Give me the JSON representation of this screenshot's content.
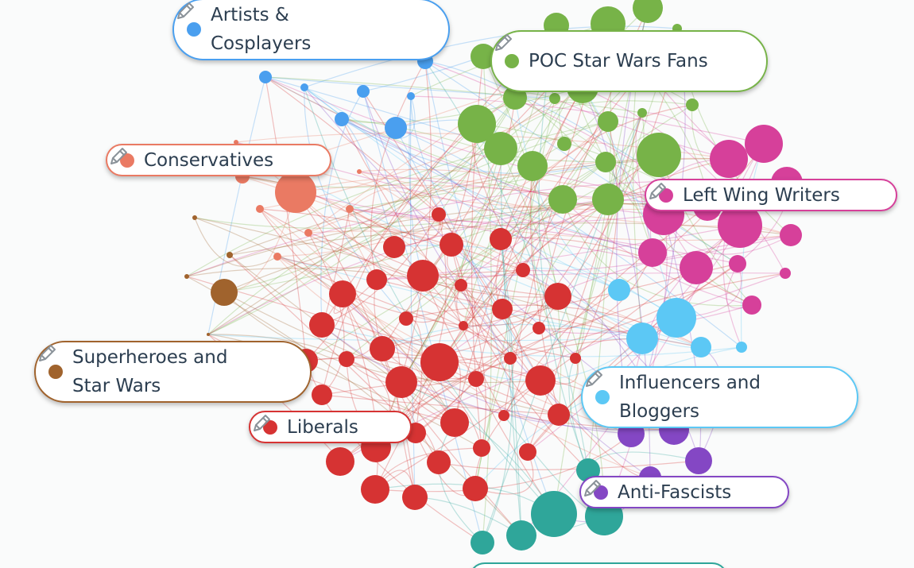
{
  "clusters": [
    {
      "label": "Artists & Cosplayers",
      "color": "#4a9fef"
    },
    {
      "label": "POC Star Wars Fans",
      "color": "#77b348"
    },
    {
      "label": "Conservatives",
      "color": "#ea7a63"
    },
    {
      "label": "Left Wing Writers",
      "color": "#d6409a"
    },
    {
      "label": "Superheroes and Star Wars",
      "color": "#a0632d"
    },
    {
      "label": "Influencers and Bloggers",
      "color": "#5cc8f5"
    },
    {
      "label": "Liberals",
      "color": "#d63333"
    },
    {
      "label": "Anti-Fascists",
      "color": "#8447c4"
    }
  ]
}
